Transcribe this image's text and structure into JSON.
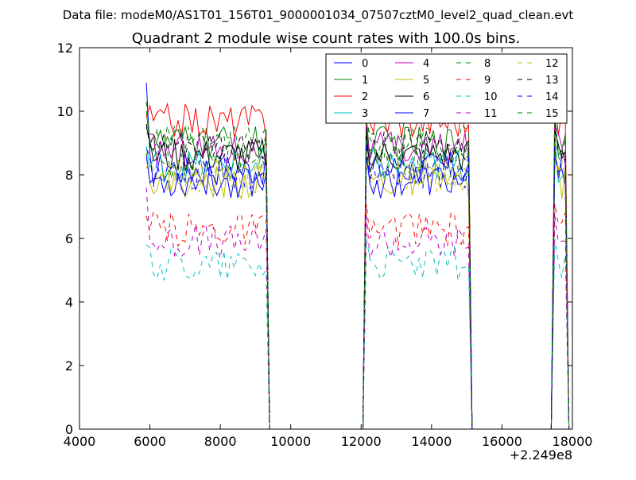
{
  "figure": {
    "suptitle": "Data file: modeM0/AS1T01_156T01_9000001034_07507cztM0_level2_quad_clean.evt"
  },
  "chart_data": {
    "type": "line",
    "title": "Quadrant 2 module wise count rates with 100.0s bins.",
    "xlabel": "",
    "ylabel": "",
    "x_offset_label": "+2.249e8",
    "xlim": [
      4000,
      18000
    ],
    "ylim": [
      0,
      12
    ],
    "xticks": [
      4000,
      6000,
      8000,
      10000,
      12000,
      14000,
      16000,
      18000
    ],
    "yticks": [
      0,
      2,
      4,
      6,
      8,
      10,
      12
    ],
    "xtick_labels": [
      "4000",
      "6000",
      "8000",
      "10000",
      "12000",
      "14000",
      "16000",
      "18000"
    ],
    "ytick_labels": [
      "0",
      "2",
      "4",
      "6",
      "8",
      "10",
      "12"
    ],
    "grid": false,
    "legend_position": "top-right",
    "legend_columns": 4,
    "segments": [
      {
        "start": 5900,
        "end": 9300
      },
      {
        "start": 12150,
        "end": 15050
      },
      {
        "start": 17500,
        "end": 17800
      }
    ],
    "series": [
      {
        "name": "0",
        "color": "#0000ff",
        "dash": "solid",
        "level": 8.2,
        "first_value": 10.9
      },
      {
        "name": "1",
        "color": "#008000",
        "dash": "solid",
        "level": 9.0,
        "first_value": 10.0
      },
      {
        "name": "2",
        "color": "#ff0000",
        "dash": "solid",
        "level": 9.7,
        "first_value": 9.8
      },
      {
        "name": "3",
        "color": "#00bfbf",
        "dash": "solid",
        "level": 8.3,
        "first_value": 8.9
      },
      {
        "name": "4",
        "color": "#bf00bf",
        "dash": "solid",
        "level": 8.8,
        "first_value": 9.3
      },
      {
        "name": "5",
        "color": "#bfbf00",
        "dash": "solid",
        "level": 7.8,
        "first_value": 8.7
      },
      {
        "name": "6",
        "color": "#000000",
        "dash": "solid",
        "level": 8.6,
        "first_value": 9.5
      },
      {
        "name": "7",
        "color": "#0000ff",
        "dash": "solid",
        "level": 7.8,
        "first_value": 8.6
      },
      {
        "name": "8",
        "color": "#008000",
        "dash": "dashed",
        "level": 8.4,
        "first_value": 8.6
      },
      {
        "name": "9",
        "color": "#ff0000",
        "dash": "dashed",
        "level": 6.3,
        "first_value": 6.7
      },
      {
        "name": "10",
        "color": "#00bfbf",
        "dash": "dashed",
        "level": 5.2,
        "first_value": 5.8
      },
      {
        "name": "11",
        "color": "#bf00bf",
        "dash": "dashed",
        "level": 5.9,
        "first_value": 7.6
      },
      {
        "name": "12",
        "color": "#bfbf00",
        "dash": "dashed",
        "level": 8.0,
        "first_value": 8.2
      },
      {
        "name": "13",
        "color": "#000000",
        "dash": "dashed",
        "level": 8.9,
        "first_value": 9.6
      },
      {
        "name": "14",
        "color": "#0000ff",
        "dash": "dashed",
        "level": 8.1,
        "first_value": 8.8
      },
      {
        "name": "15",
        "color": "#008000",
        "dash": "dashed",
        "level": 9.0,
        "first_value": 10.3
      }
    ]
  }
}
